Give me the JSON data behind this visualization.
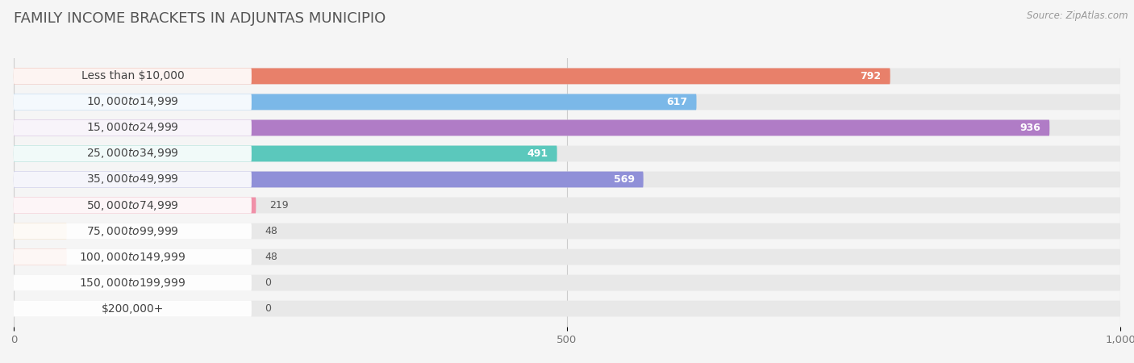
{
  "title": "FAMILY INCOME BRACKETS IN ADJUNTAS MUNICIPIO",
  "source": "Source: ZipAtlas.com",
  "categories": [
    "Less than $10,000",
    "$10,000 to $14,999",
    "$15,000 to $24,999",
    "$25,000 to $34,999",
    "$35,000 to $49,999",
    "$50,000 to $74,999",
    "$75,000 to $99,999",
    "$100,000 to $149,999",
    "$150,000 to $199,999",
    "$200,000+"
  ],
  "values": [
    792,
    617,
    936,
    491,
    569,
    219,
    48,
    48,
    0,
    0
  ],
  "bar_colors": [
    "#E8806A",
    "#7BB8E8",
    "#B07CC6",
    "#5BC8BC",
    "#9090D8",
    "#F090A8",
    "#F0C898",
    "#F0A090",
    "#A0B8E8",
    "#C8B0D8"
  ],
  "xlim": [
    0,
    1000
  ],
  "xticks": [
    0,
    500,
    1000
  ],
  "xtick_labels": [
    "0",
    "500",
    "1,000"
  ],
  "background_color": "#f5f5f5",
  "bar_bg_color": "#e8e8e8",
  "label_bg_color": "#ffffff",
  "title_fontsize": 13,
  "label_fontsize": 10,
  "value_fontsize": 9,
  "value_inside_threshold": 300
}
